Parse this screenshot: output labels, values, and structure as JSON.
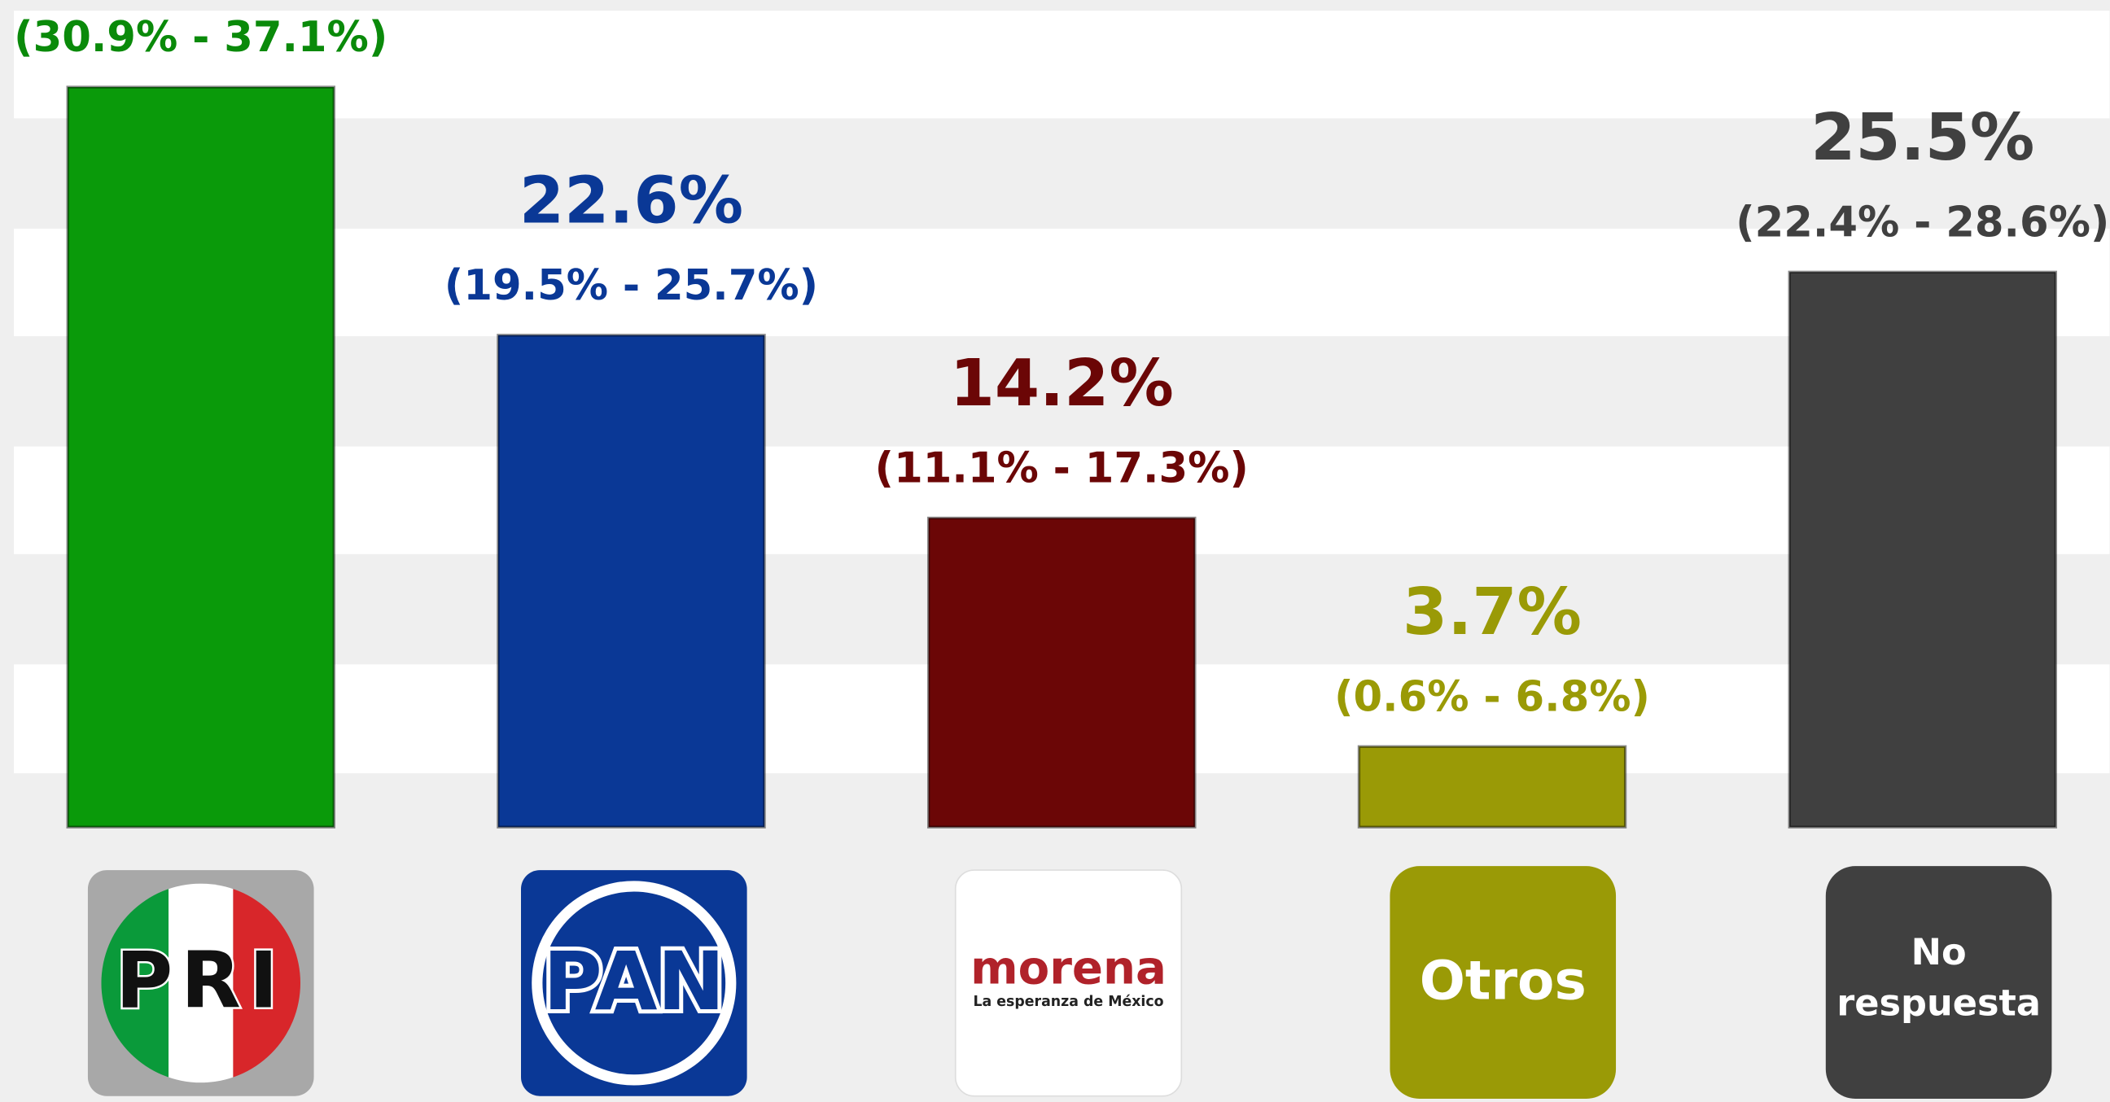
{
  "chart_data": {
    "type": "bar",
    "categories": [
      "PRI",
      "PAN",
      "morena",
      "Otros",
      "No respuesta"
    ],
    "values": [
      34.0,
      22.6,
      14.2,
      3.7,
      25.5
    ],
    "value_labels": [
      null,
      "22.6%",
      "14.2%",
      "3.7%",
      "25.5%"
    ],
    "ci_labels": [
      "(30.9% - 37.1%)",
      "(19.5% - 25.7%)",
      "(11.1% - 17.3%)",
      "(0.6% - 6.8%)",
      "(22.4% - 28.6%)"
    ],
    "colors": [
      "#0a9a0a",
      "#0a3896",
      "#6b0606",
      "#9a9a06",
      "#404040"
    ],
    "label_colors": [
      "#0a8a0a",
      "#0a3896",
      "#6b0606",
      "#9a9a06",
      "#404040"
    ],
    "morena_tagline": "La esperanza de México",
    "ylim": [
      0,
      38
    ]
  }
}
